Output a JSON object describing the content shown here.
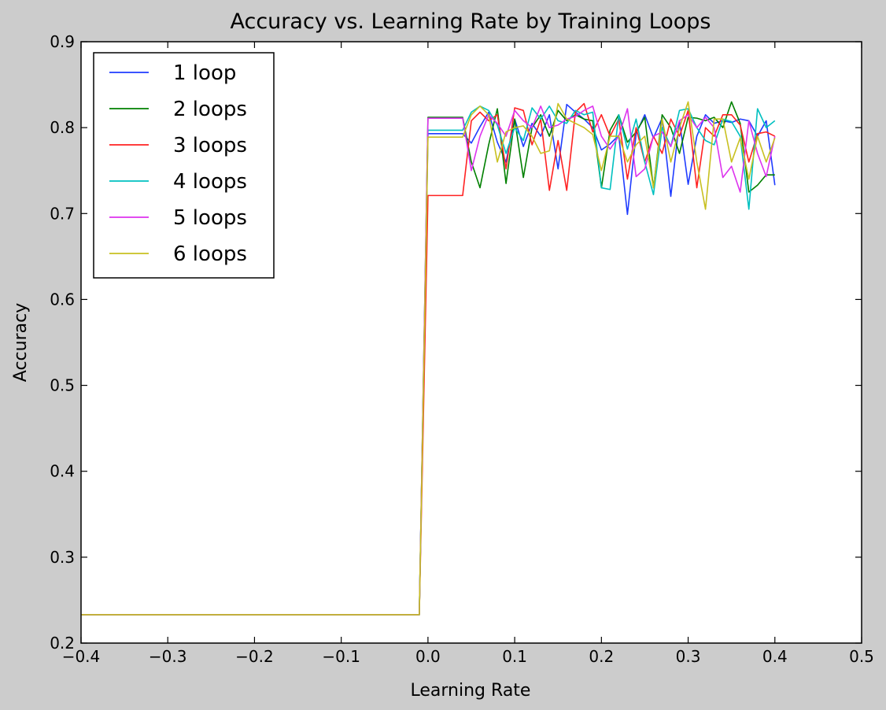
{
  "colors": {
    "background": "#cccccc",
    "plot_area": "#ffffff"
  },
  "chart_data": {
    "type": "line",
    "title": "Accuracy vs. Learning Rate by Training Loops",
    "xlabel": "Learning Rate",
    "ylabel": "Accuracy",
    "xlim": [
      -0.4,
      0.5
    ],
    "ylim": [
      0.2,
      0.9
    ],
    "x_ticks": [
      -0.4,
      -0.3,
      -0.2,
      -0.1,
      0.0,
      0.1,
      0.2,
      0.3,
      0.4,
      0.5
    ],
    "x_tick_labels": [
      "−0.4",
      "−0.3",
      "−0.2",
      "−0.1",
      "0.0",
      "0.1",
      "0.2",
      "0.3",
      "0.4",
      "0.5"
    ],
    "y_ticks": [
      0.2,
      0.3,
      0.4,
      0.5,
      0.6,
      0.7,
      0.8,
      0.9
    ],
    "y_tick_labels": [
      "0.2",
      "0.3",
      "0.4",
      "0.5",
      "0.6",
      "0.7",
      "0.8",
      "0.9"
    ],
    "grid": false,
    "legend_position": "top-left",
    "x": [
      -0.4,
      -0.39,
      -0.38,
      -0.37,
      -0.36,
      -0.35,
      -0.34,
      -0.33,
      -0.32,
      -0.31,
      -0.3,
      -0.29,
      -0.28,
      -0.27,
      -0.26,
      -0.25,
      -0.24,
      -0.23,
      -0.22,
      -0.21,
      -0.2,
      -0.19,
      -0.18,
      -0.17,
      -0.16,
      -0.15,
      -0.14,
      -0.13,
      -0.12,
      -0.11,
      -0.1,
      -0.09,
      -0.08,
      -0.07,
      -0.06,
      -0.05,
      -0.04,
      -0.03,
      -0.02,
      -0.01,
      0.0,
      0.01,
      0.02,
      0.03,
      0.04,
      0.05,
      0.06,
      0.07,
      0.08,
      0.09,
      0.1,
      0.11,
      0.12,
      0.13,
      0.14,
      0.15,
      0.16,
      0.17,
      0.18,
      0.19,
      0.2,
      0.21,
      0.22,
      0.23,
      0.24,
      0.25,
      0.26,
      0.27,
      0.28,
      0.29,
      0.3,
      0.31,
      0.32,
      0.33,
      0.34,
      0.35,
      0.36,
      0.37,
      0.38,
      0.39,
      0.4
    ],
    "series": [
      {
        "name": "1 loop",
        "color": "#1f3cff",
        "values": [
          0.233,
          0.233,
          0.233,
          0.233,
          0.233,
          0.233,
          0.233,
          0.233,
          0.233,
          0.233,
          0.233,
          0.233,
          0.233,
          0.233,
          0.233,
          0.233,
          0.233,
          0.233,
          0.233,
          0.233,
          0.233,
          0.233,
          0.233,
          0.233,
          0.233,
          0.233,
          0.233,
          0.233,
          0.233,
          0.233,
          0.233,
          0.233,
          0.233,
          0.233,
          0.233,
          0.233,
          0.233,
          0.233,
          0.233,
          0.233,
          0.793,
          0.793,
          0.793,
          0.793,
          0.793,
          0.782,
          0.801,
          0.818,
          0.783,
          0.76,
          0.81,
          0.778,
          0.805,
          0.79,
          0.815,
          0.752,
          0.827,
          0.818,
          0.81,
          0.8,
          0.774,
          0.781,
          0.791,
          0.699,
          0.793,
          0.815,
          0.788,
          0.811,
          0.72,
          0.808,
          0.734,
          0.79,
          0.815,
          0.805,
          0.808,
          0.806,
          0.81,
          0.808,
          0.79,
          0.808,
          0.733
        ]
      },
      {
        "name": "2 loops",
        "color": "#008000",
        "values": [
          0.233,
          0.233,
          0.233,
          0.233,
          0.233,
          0.233,
          0.233,
          0.233,
          0.233,
          0.233,
          0.233,
          0.233,
          0.233,
          0.233,
          0.233,
          0.233,
          0.233,
          0.233,
          0.233,
          0.233,
          0.233,
          0.233,
          0.233,
          0.233,
          0.233,
          0.233,
          0.233,
          0.233,
          0.233,
          0.233,
          0.233,
          0.233,
          0.233,
          0.233,
          0.233,
          0.233,
          0.233,
          0.233,
          0.233,
          0.233,
          0.812,
          0.812,
          0.812,
          0.812,
          0.812,
          0.76,
          0.73,
          0.78,
          0.822,
          0.735,
          0.81,
          0.742,
          0.8,
          0.815,
          0.79,
          0.82,
          0.808,
          0.815,
          0.81,
          0.808,
          0.73,
          0.797,
          0.815,
          0.783,
          0.795,
          0.812,
          0.73,
          0.815,
          0.8,
          0.77,
          0.812,
          0.811,
          0.808,
          0.812,
          0.8,
          0.83,
          0.805,
          0.725,
          0.733,
          0.745,
          0.745
        ]
      },
      {
        "name": "3 loops",
        "color": "#ff2222",
        "values": [
          0.233,
          0.233,
          0.233,
          0.233,
          0.233,
          0.233,
          0.233,
          0.233,
          0.233,
          0.233,
          0.233,
          0.233,
          0.233,
          0.233,
          0.233,
          0.233,
          0.233,
          0.233,
          0.233,
          0.233,
          0.233,
          0.233,
          0.233,
          0.233,
          0.233,
          0.233,
          0.233,
          0.233,
          0.233,
          0.233,
          0.233,
          0.233,
          0.233,
          0.233,
          0.233,
          0.233,
          0.233,
          0.233,
          0.233,
          0.233,
          0.721,
          0.721,
          0.721,
          0.721,
          0.721,
          0.808,
          0.818,
          0.808,
          0.815,
          0.752,
          0.823,
          0.82,
          0.78,
          0.81,
          0.727,
          0.785,
          0.727,
          0.818,
          0.828,
          0.795,
          0.815,
          0.79,
          0.81,
          0.74,
          0.8,
          0.76,
          0.79,
          0.77,
          0.81,
          0.79,
          0.82,
          0.73,
          0.8,
          0.79,
          0.815,
          0.815,
          0.803,
          0.76,
          0.793,
          0.795,
          0.79
        ]
      },
      {
        "name": "4 loops",
        "color": "#00c0c0",
        "values": [
          0.233,
          0.233,
          0.233,
          0.233,
          0.233,
          0.233,
          0.233,
          0.233,
          0.233,
          0.233,
          0.233,
          0.233,
          0.233,
          0.233,
          0.233,
          0.233,
          0.233,
          0.233,
          0.233,
          0.233,
          0.233,
          0.233,
          0.233,
          0.233,
          0.233,
          0.233,
          0.233,
          0.233,
          0.233,
          0.233,
          0.233,
          0.233,
          0.233,
          0.233,
          0.233,
          0.233,
          0.233,
          0.233,
          0.233,
          0.233,
          0.797,
          0.797,
          0.797,
          0.797,
          0.797,
          0.818,
          0.825,
          0.82,
          0.803,
          0.77,
          0.8,
          0.785,
          0.823,
          0.81,
          0.825,
          0.808,
          0.805,
          0.82,
          0.815,
          0.818,
          0.73,
          0.728,
          0.815,
          0.775,
          0.81,
          0.76,
          0.722,
          0.8,
          0.778,
          0.82,
          0.822,
          0.8,
          0.785,
          0.78,
          0.81,
          0.807,
          0.79,
          0.705,
          0.822,
          0.8,
          0.808
        ]
      },
      {
        "name": "5 loops",
        "color": "#dd33ee",
        "values": [
          0.233,
          0.233,
          0.233,
          0.233,
          0.233,
          0.233,
          0.233,
          0.233,
          0.233,
          0.233,
          0.233,
          0.233,
          0.233,
          0.233,
          0.233,
          0.233,
          0.233,
          0.233,
          0.233,
          0.233,
          0.233,
          0.233,
          0.233,
          0.233,
          0.233,
          0.233,
          0.233,
          0.233,
          0.233,
          0.233,
          0.233,
          0.233,
          0.233,
          0.233,
          0.233,
          0.233,
          0.233,
          0.233,
          0.233,
          0.233,
          0.811,
          0.811,
          0.811,
          0.811,
          0.811,
          0.75,
          0.79,
          0.815,
          0.805,
          0.79,
          0.82,
          0.808,
          0.8,
          0.825,
          0.8,
          0.803,
          0.81,
          0.813,
          0.82,
          0.825,
          0.79,
          0.775,
          0.79,
          0.822,
          0.743,
          0.752,
          0.79,
          0.795,
          0.778,
          0.808,
          0.815,
          0.8,
          0.812,
          0.8,
          0.742,
          0.755,
          0.725,
          0.808,
          0.77,
          0.743,
          0.79
        ]
      },
      {
        "name": "6 loops",
        "color": "#c8c020",
        "values": [
          0.233,
          0.233,
          0.233,
          0.233,
          0.233,
          0.233,
          0.233,
          0.233,
          0.233,
          0.233,
          0.233,
          0.233,
          0.233,
          0.233,
          0.233,
          0.233,
          0.233,
          0.233,
          0.233,
          0.233,
          0.233,
          0.233,
          0.233,
          0.233,
          0.233,
          0.233,
          0.233,
          0.233,
          0.233,
          0.233,
          0.233,
          0.233,
          0.233,
          0.233,
          0.233,
          0.233,
          0.233,
          0.233,
          0.233,
          0.233,
          0.789,
          0.789,
          0.789,
          0.789,
          0.789,
          0.815,
          0.825,
          0.815,
          0.76,
          0.795,
          0.8,
          0.802,
          0.79,
          0.77,
          0.773,
          0.828,
          0.81,
          0.805,
          0.8,
          0.792,
          0.75,
          0.79,
          0.79,
          0.76,
          0.78,
          0.79,
          0.73,
          0.81,
          0.76,
          0.8,
          0.83,
          0.76,
          0.705,
          0.81,
          0.81,
          0.76,
          0.788,
          0.74,
          0.79,
          0.76,
          0.788
        ]
      }
    ]
  }
}
